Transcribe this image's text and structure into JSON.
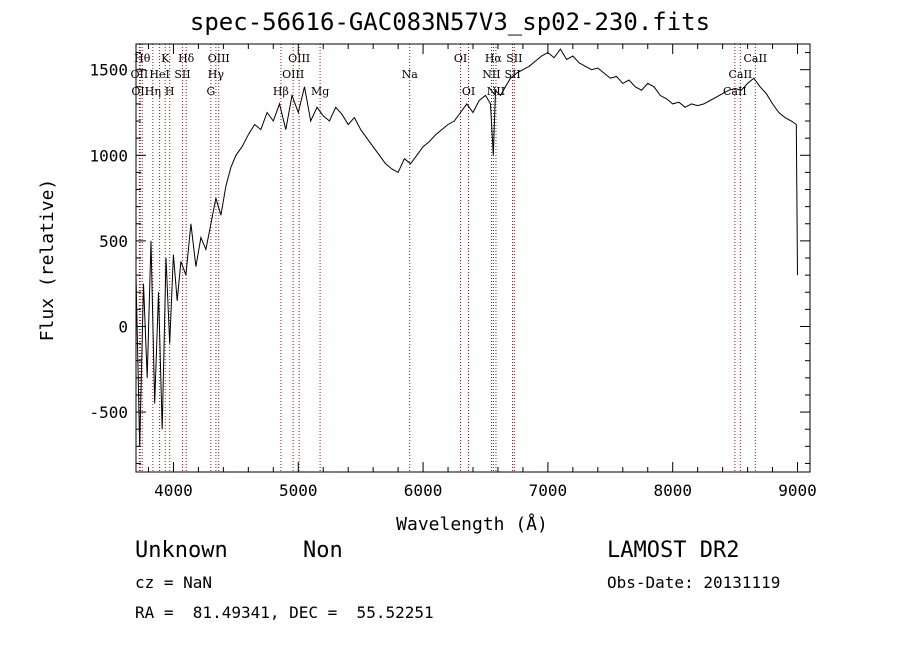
{
  "header": {
    "title": "spec-56616-GAC083N57V3_sp02-230.fits"
  },
  "footer": {
    "object_class": "Unknown",
    "object_subclass": "Non",
    "survey": "LAMOST DR2",
    "cz": "cz = NaN",
    "obs_date": "Obs-Date: 20131119",
    "radec": "RA =  81.49341, DEC =  55.52251"
  },
  "colors": {
    "spectrum": "#000000",
    "line_markers": "#8b1a1a",
    "axes": "#000000"
  },
  "chart_data": {
    "type": "line",
    "title": "spec-56616-GAC083N57V3_sp02-230.fits",
    "xlabel": "Wavelength (Å)",
    "ylabel": "Flux (relative)",
    "xlim": [
      3700,
      9100
    ],
    "ylim": [
      -850,
      1650
    ],
    "xticks": [
      4000,
      5000,
      6000,
      7000,
      8000,
      9000
    ],
    "yticks": [
      -500,
      0,
      500,
      1000,
      1500
    ],
    "grid": false,
    "series": [
      {
        "x": [
          3700,
          3730,
          3760,
          3790,
          3820,
          3850,
          3880,
          3910,
          3940,
          3970,
          4000,
          4030,
          4060,
          4100,
          4140,
          4180,
          4220,
          4260,
          4300,
          4340,
          4380,
          4420,
          4460,
          4500,
          4550,
          4600,
          4650,
          4700,
          4750,
          4800,
          4850,
          4900,
          4950,
          5000,
          5050,
          5100,
          5150,
          5200,
          5250,
          5300,
          5350,
          5400,
          5450,
          5500,
          5550,
          5600,
          5650,
          5700,
          5750,
          5800,
          5850,
          5900,
          5950,
          6000,
          6050,
          6100,
          6150,
          6200,
          6250,
          6300,
          6350,
          6400,
          6450,
          6500,
          6540,
          6563,
          6580,
          6620,
          6660,
          6700,
          6750,
          6800,
          6850,
          6900,
          6950,
          7000,
          7050,
          7100,
          7150,
          7200,
          7250,
          7300,
          7350,
          7400,
          7450,
          7500,
          7550,
          7600,
          7650,
          7700,
          7750,
          7800,
          7850,
          7900,
          7950,
          8000,
          8050,
          8100,
          8150,
          8200,
          8250,
          8300,
          8350,
          8400,
          8450,
          8500,
          8550,
          8600,
          8650,
          8700,
          8750,
          8800,
          8850,
          8900,
          8950,
          8990,
          9000
        ],
        "y": [
          300,
          -700,
          250,
          -300,
          500,
          -450,
          200,
          -600,
          400,
          -100,
          420,
          150,
          380,
          300,
          600,
          350,
          520,
          450,
          600,
          750,
          650,
          820,
          930,
          1000,
          1050,
          1120,
          1180,
          1150,
          1250,
          1200,
          1300,
          1150,
          1350,
          1250,
          1400,
          1200,
          1280,
          1230,
          1200,
          1280,
          1240,
          1180,
          1220,
          1150,
          1100,
          1050,
          1000,
          950,
          920,
          900,
          980,
          950,
          1000,
          1050,
          1080,
          1120,
          1150,
          1180,
          1200,
          1250,
          1300,
          1250,
          1320,
          1350,
          1300,
          1000,
          1380,
          1350,
          1400,
          1450,
          1480,
          1500,
          1520,
          1550,
          1580,
          1600,
          1570,
          1620,
          1560,
          1580,
          1540,
          1520,
          1500,
          1510,
          1480,
          1450,
          1460,
          1420,
          1440,
          1400,
          1380,
          1420,
          1400,
          1350,
          1330,
          1300,
          1310,
          1280,
          1300,
          1290,
          1300,
          1320,
          1340,
          1360,
          1380,
          1390,
          1380,
          1420,
          1450,
          1400,
          1360,
          1300,
          1250,
          1220,
          1200,
          1180,
          300
        ]
      }
    ],
    "line_markers": [
      {
        "x": 3750,
        "label": "Hθ",
        "row": 0
      },
      {
        "x": 3727,
        "label": "OII",
        "row": 1
      },
      {
        "x": 3734,
        "label": "OII",
        "row": 2
      },
      {
        "x": 3835,
        "label": "Hη",
        "row": 2
      },
      {
        "x": 3889,
        "label": "HeI",
        "row": 1
      },
      {
        "x": 3934,
        "label": "K",
        "row": 0
      },
      {
        "x": 3970,
        "label": "H",
        "row": 2
      },
      {
        "x": 4072,
        "label": "SII",
        "row": 1
      },
      {
        "x": 4102,
        "label": "Hδ",
        "row": 0
      },
      {
        "x": 4300,
        "label": "G",
        "row": 2
      },
      {
        "x": 4340,
        "label": "Hγ",
        "row": 1
      },
      {
        "x": 4363,
        "label": "OIII",
        "row": 0
      },
      {
        "x": 4861,
        "label": "Hβ",
        "row": 2
      },
      {
        "x": 4959,
        "label": "OIII",
        "row": 1
      },
      {
        "x": 5007,
        "label": "OIII",
        "row": 0
      },
      {
        "x": 5175,
        "label": "Mg",
        "row": 2
      },
      {
        "x": 5893,
        "label": "Na",
        "row": 1
      },
      {
        "x": 6300,
        "label": "OI",
        "row": 0
      },
      {
        "x": 6364,
        "label": "OI",
        "row": 2
      },
      {
        "x": 6548,
        "label": "NII",
        "row": 1
      },
      {
        "x": 6563,
        "label": "Hα",
        "row": 0
      },
      {
        "x": 6584,
        "label": "NII",
        "row": 2
      },
      {
        "x": 6717,
        "label": "SII",
        "row": 1
      },
      {
        "x": 6731,
        "label": "SII",
        "row": 0
      },
      {
        "x": 8498,
        "label": "CaII",
        "row": 2
      },
      {
        "x": 8542,
        "label": "CaII",
        "row": 1
      },
      {
        "x": 8662,
        "label": "CaII",
        "row": 0
      }
    ]
  }
}
